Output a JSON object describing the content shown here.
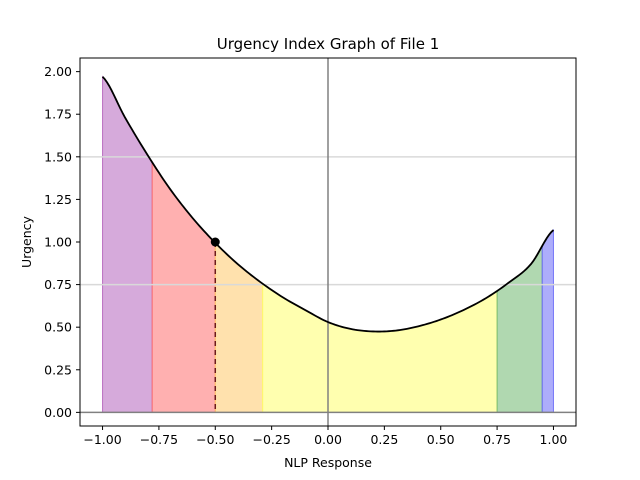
{
  "chart_data": {
    "type": "area",
    "title": "Urgency Index Graph of File 1",
    "xlabel": "NLP Response",
    "ylabel": "Urgency",
    "xlim": [
      -1.1,
      1.1
    ],
    "ylim": [
      -0.08,
      2.08
    ],
    "xticks": [
      -1.0,
      -0.75,
      -0.5,
      -0.25,
      0.0,
      0.25,
      0.5,
      0.75,
      1.0
    ],
    "xtick_labels": [
      "−1.00",
      "−0.75",
      "−0.50",
      "−0.25",
      "0.00",
      "0.25",
      "0.50",
      "0.75",
      "1.00"
    ],
    "yticks": [
      0.0,
      0.25,
      0.5,
      0.75,
      1.0,
      1.25,
      1.5,
      1.75,
      2.0
    ],
    "ytick_labels": [
      "0.00",
      "0.25",
      "0.50",
      "0.75",
      "1.00",
      "1.25",
      "1.50",
      "1.75",
      "2.00"
    ],
    "curve": {
      "color": "#000000",
      "x": [
        -1.0,
        -0.9,
        -0.8,
        -0.7,
        -0.6,
        -0.5,
        -0.4,
        -0.3,
        -0.2,
        -0.1,
        0.0,
        0.1,
        0.2,
        0.3,
        0.4,
        0.5,
        0.6,
        0.7,
        0.8,
        0.9,
        1.0
      ],
      "y": [
        1.97,
        1.73,
        1.51,
        1.31,
        1.14,
        0.995,
        0.87,
        0.765,
        0.675,
        0.6,
        0.53,
        0.49,
        0.475,
        0.48,
        0.505,
        0.545,
        0.6,
        0.67,
        0.76,
        0.87,
        1.07
      ]
    },
    "regions": [
      {
        "x_start": -1.0,
        "x_end": -0.78,
        "color": "#b565bd"
      },
      {
        "x_start": -0.78,
        "x_end": -0.5,
        "color": "#ff6f6f"
      },
      {
        "x_start": -0.5,
        "x_end": -0.29,
        "color": "#ffc86a"
      },
      {
        "x_start": -0.29,
        "x_end": 0.75,
        "color": "#ffff6e"
      },
      {
        "x_start": 0.75,
        "x_end": 0.95,
        "color": "#6fb86f"
      },
      {
        "x_start": 0.95,
        "x_end": 1.0,
        "color": "#6a6af7"
      }
    ],
    "marker_point": {
      "x": -0.5,
      "y": 1.0,
      "color": "#000000"
    },
    "marker_line_color": "#6b1a1a",
    "hlines": [
      {
        "y": 0.0,
        "color": "#808080"
      }
    ],
    "vlines": [
      {
        "x": 0.0,
        "color": "#808080"
      }
    ],
    "grid": {
      "y_lines": [
        0.75,
        1.5
      ],
      "color": "#d9d9d9"
    }
  }
}
